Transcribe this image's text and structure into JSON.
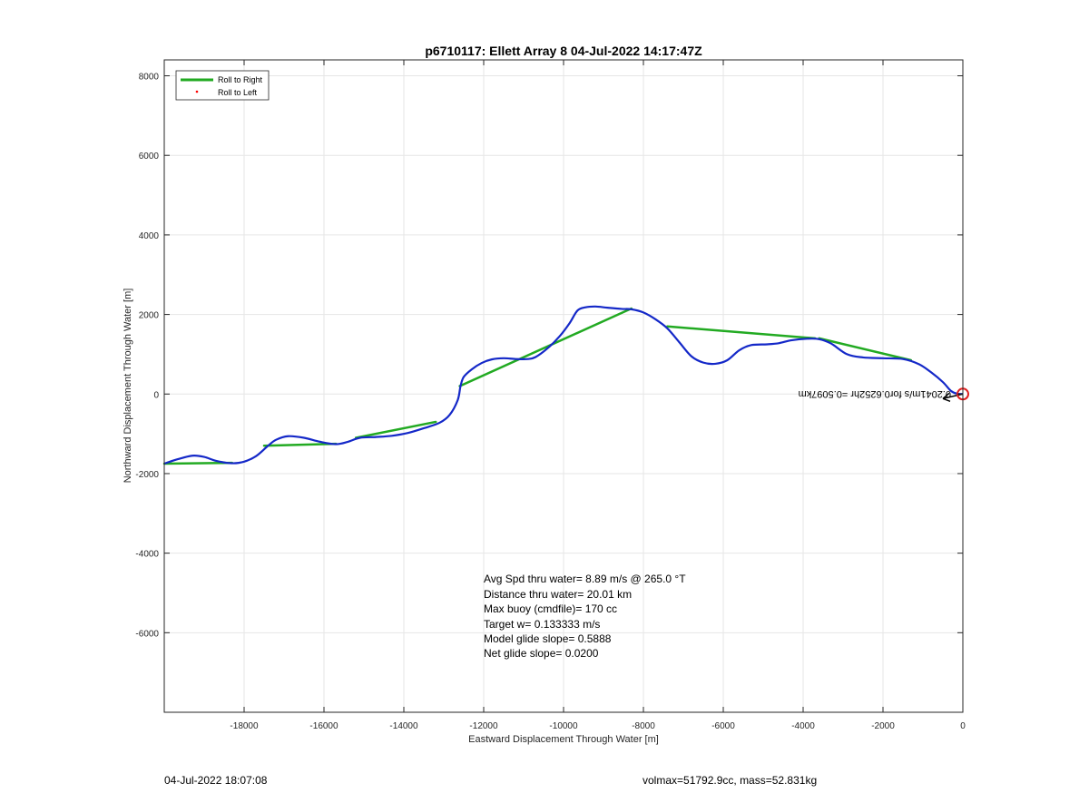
{
  "footer": {
    "left": "04-Jul-2022 18:07:08",
    "right": "volmax=51792.9cc, mass=52.831kg"
  },
  "chart_data": {
    "type": "line",
    "title": "p6710117: Ellett Array 8 04-Jul-2022 14:17:47Z",
    "xlabel": "Eastward Displacement Through Water [m]",
    "ylabel": "Northward Displacement Through Water [m]",
    "xlim": [
      -20000,
      0
    ],
    "ylim": [
      -8000,
      8400
    ],
    "xticks": [
      -18000,
      -16000,
      -14000,
      -12000,
      -10000,
      -8000,
      -6000,
      -4000,
      -2000,
      0
    ],
    "yticks": [
      -6000,
      -4000,
      -2000,
      0,
      2000,
      4000,
      6000,
      8000
    ],
    "grid": true,
    "legend_position": "top-left",
    "legend": [
      {
        "label": "Roll to Right",
        "color": "#22aa22",
        "style": "line"
      },
      {
        "label": "Roll to Left",
        "color": "#ff0000",
        "style": "dot"
      }
    ],
    "series": [
      {
        "name": "Roll to Right",
        "color": "#22aa22",
        "segments": [
          [
            [
              -20000,
              -1750
            ],
            [
              -18300,
              -1730
            ]
          ],
          [
            [
              -17500,
              -1300
            ],
            [
              -15700,
              -1250
            ]
          ],
          [
            [
              -15200,
              -1100
            ],
            [
              -13200,
              -700
            ]
          ],
          [
            [
              -12600,
              200
            ],
            [
              -8300,
              2150
            ]
          ],
          [
            [
              -7400,
              1700
            ],
            [
              -3700,
              1400
            ]
          ],
          [
            [
              -3600,
              1400
            ],
            [
              -1300,
              850
            ]
          ]
        ]
      },
      {
        "color": "#1428c8",
        "points": [
          [
            -20000,
            -1750
          ],
          [
            -19700,
            -1650
          ],
          [
            -19300,
            -1550
          ],
          [
            -19000,
            -1580
          ],
          [
            -18700,
            -1680
          ],
          [
            -18300,
            -1740
          ],
          [
            -18000,
            -1700
          ],
          [
            -17700,
            -1560
          ],
          [
            -17400,
            -1300
          ],
          [
            -17200,
            -1150
          ],
          [
            -16900,
            -1060
          ],
          [
            -16500,
            -1100
          ],
          [
            -16100,
            -1200
          ],
          [
            -15700,
            -1260
          ],
          [
            -15400,
            -1200
          ],
          [
            -15100,
            -1100
          ],
          [
            -14700,
            -1080
          ],
          [
            -14300,
            -1050
          ],
          [
            -13900,
            -980
          ],
          [
            -13500,
            -860
          ],
          [
            -13100,
            -720
          ],
          [
            -12850,
            -520
          ],
          [
            -12650,
            -150
          ],
          [
            -12580,
            200
          ],
          [
            -12500,
            430
          ],
          [
            -12300,
            620
          ],
          [
            -12050,
            780
          ],
          [
            -11800,
            870
          ],
          [
            -11500,
            900
          ],
          [
            -11200,
            880
          ],
          [
            -10900,
            880
          ],
          [
            -10700,
            930
          ],
          [
            -10400,
            1150
          ],
          [
            -10100,
            1450
          ],
          [
            -9850,
            1780
          ],
          [
            -9650,
            2100
          ],
          [
            -9450,
            2180
          ],
          [
            -9200,
            2200
          ],
          [
            -8900,
            2170
          ],
          [
            -8550,
            2140
          ],
          [
            -8300,
            2130
          ],
          [
            -8000,
            2050
          ],
          [
            -7700,
            1880
          ],
          [
            -7400,
            1650
          ],
          [
            -7100,
            1300
          ],
          [
            -6800,
            950
          ],
          [
            -6500,
            790
          ],
          [
            -6200,
            760
          ],
          [
            -5900,
            850
          ],
          [
            -5600,
            1100
          ],
          [
            -5300,
            1230
          ],
          [
            -4900,
            1250
          ],
          [
            -4600,
            1280
          ],
          [
            -4300,
            1350
          ],
          [
            -3900,
            1390
          ],
          [
            -3600,
            1380
          ],
          [
            -3300,
            1270
          ],
          [
            -2900,
            1000
          ],
          [
            -2500,
            920
          ],
          [
            -2000,
            900
          ],
          [
            -1500,
            880
          ],
          [
            -1100,
            750
          ],
          [
            -800,
            550
          ],
          [
            -500,
            300
          ],
          [
            -300,
            80
          ],
          [
            -150,
            10
          ],
          [
            0,
            0
          ]
        ]
      }
    ],
    "marker": {
      "x": 0,
      "y": 0,
      "shape": "circle",
      "color": "#e02020"
    },
    "rotated_label": "0.2041m/s for0.6252hr =0.5097km",
    "annotations": [
      "Avg Spd thru water=  8.89 m/s @ 265.0 °T",
      "Distance thru water= 20.01 km",
      "Max buoy (cmdfile)= 170 cc",
      "Target w= 0.133333 m/s",
      "Model glide slope= 0.5888",
      "Net glide slope= 0.0200"
    ]
  }
}
